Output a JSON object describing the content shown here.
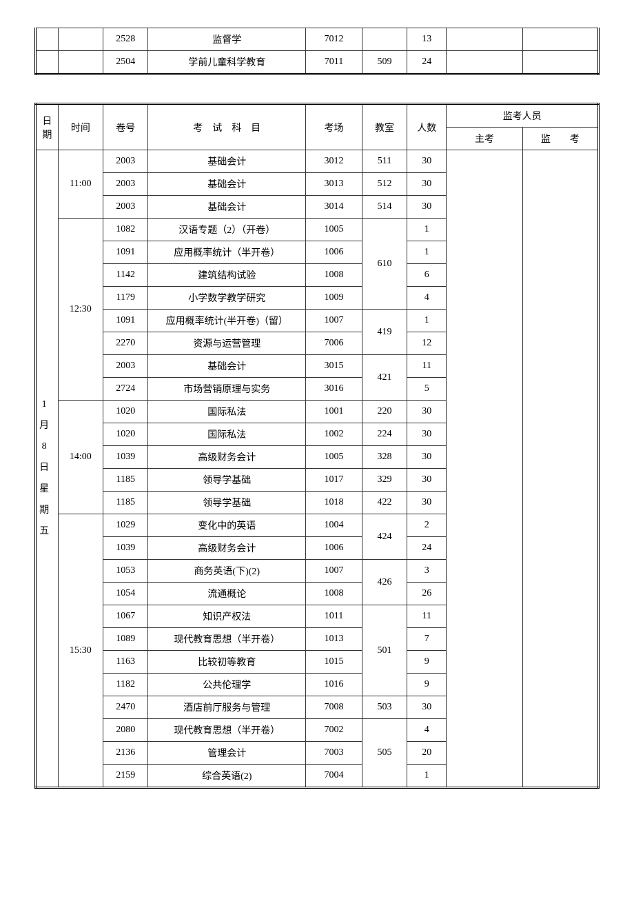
{
  "top_table": {
    "rows": [
      {
        "code": "2528",
        "subject": "监督学",
        "venue": "7012",
        "room": "",
        "count": "13"
      },
      {
        "code": "2504",
        "subject": "学前儿童科学教育",
        "venue": "7011",
        "room": "509",
        "count": "24"
      }
    ]
  },
  "headers": {
    "date": "日期",
    "time": "时间",
    "code": "卷号",
    "subject": "考　试　科　目",
    "venue": "考场",
    "room": "教室",
    "count": "人数",
    "supervisors": "监考人员",
    "main": "主考",
    "invig": "监　　考"
  },
  "date_label": "1 月 8 日 星 期 五",
  "sessions": [
    {
      "time": "11:00",
      "rows": [
        {
          "code": "2003",
          "subject": "基础会计",
          "venue": "3012",
          "room": "511",
          "count": "30",
          "rowspan_room": 1
        },
        {
          "code": "2003",
          "subject": "基础会计",
          "venue": "3013",
          "room": "512",
          "count": "30",
          "rowspan_room": 1
        },
        {
          "code": "2003",
          "subject": "基础会计",
          "venue": "3014",
          "room": "514",
          "count": "30",
          "rowspan_room": 1
        }
      ]
    },
    {
      "time": "12:30",
      "rows": [
        {
          "code": "1082",
          "subject": "汉语专题（2）（开卷）",
          "venue": "1005",
          "room": "610",
          "count": "1",
          "rowspan_room": 4
        },
        {
          "code": "1091",
          "subject": "应用概率统计（半开卷）",
          "venue": "1006",
          "room": "",
          "count": "1"
        },
        {
          "code": "1142",
          "subject": "建筑结构试验",
          "venue": "1008",
          "room": "",
          "count": "6"
        },
        {
          "code": "1179",
          "subject": "小学数学教学研究",
          "venue": "1009",
          "room": "",
          "count": "4"
        },
        {
          "code": "1091",
          "subject": "应用概率统计(半开卷)（留）",
          "venue": "1007",
          "room": "419",
          "count": "1",
          "rowspan_room": 2
        },
        {
          "code": "2270",
          "subject": "资源与运营管理",
          "venue": "7006",
          "room": "",
          "count": "12"
        },
        {
          "code": "2003",
          "subject": "基础会计",
          "venue": "3015",
          "room": "421",
          "count": "11",
          "rowspan_room": 2
        },
        {
          "code": "2724",
          "subject": "市场营销原理与实务",
          "venue": "3016",
          "room": "",
          "count": "5"
        }
      ]
    },
    {
      "time": "14:00",
      "rows": [
        {
          "code": "1020",
          "subject": "国际私法",
          "venue": "1001",
          "room": "220",
          "count": "30",
          "rowspan_room": 1
        },
        {
          "code": "1020",
          "subject": "国际私法",
          "venue": "1002",
          "room": "224",
          "count": "30",
          "rowspan_room": 1
        },
        {
          "code": "1039",
          "subject": "高级财务会计",
          "venue": "1005",
          "room": "328",
          "count": "30",
          "rowspan_room": 1
        },
        {
          "code": "1185",
          "subject": "领导学基础",
          "venue": "1017",
          "room": "329",
          "count": "30",
          "rowspan_room": 1
        },
        {
          "code": "1185",
          "subject": "领导学基础",
          "venue": "1018",
          "room": "422",
          "count": "30",
          "rowspan_room": 1
        }
      ]
    },
    {
      "time": "15:30",
      "rows": [
        {
          "code": "1029",
          "subject": "变化中的英语",
          "venue": "1004",
          "room": "424",
          "count": "2",
          "rowspan_room": 2
        },
        {
          "code": "1039",
          "subject": "高级财务会计",
          "venue": "1006",
          "room": "",
          "count": "24"
        },
        {
          "code": "1053",
          "subject": "商务英语(下)(2)",
          "venue": "1007",
          "room": "426",
          "count": "3",
          "rowspan_room": 2
        },
        {
          "code": "1054",
          "subject": "流通概论",
          "venue": "1008",
          "room": "",
          "count": "26"
        },
        {
          "code": "1067",
          "subject": "知识产权法",
          "venue": "1011",
          "room": "501",
          "count": "11",
          "rowspan_room": 4
        },
        {
          "code": "1089",
          "subject": "现代教育思想（半开卷）",
          "venue": "1013",
          "room": "",
          "count": "7"
        },
        {
          "code": "1163",
          "subject": "比较初等教育",
          "venue": "1015",
          "room": "",
          "count": "9"
        },
        {
          "code": "1182",
          "subject": "公共伦理学",
          "venue": "1016",
          "room": "",
          "count": "9"
        },
        {
          "code": "2470",
          "subject": "酒店前厅服务与管理",
          "venue": "7008",
          "room": "503",
          "count": "30",
          "rowspan_room": 1
        },
        {
          "code": "2080",
          "subject": "现代教育思想（半开卷）",
          "venue": "7002",
          "room": "505",
          "count": "4",
          "rowspan_room": 3
        },
        {
          "code": "2136",
          "subject": "管理会计",
          "venue": "7003",
          "room": "",
          "count": "20"
        },
        {
          "code": "2159",
          "subject": "综合英语(2)",
          "venue": "7004",
          "room": "",
          "count": "1"
        }
      ]
    }
  ]
}
